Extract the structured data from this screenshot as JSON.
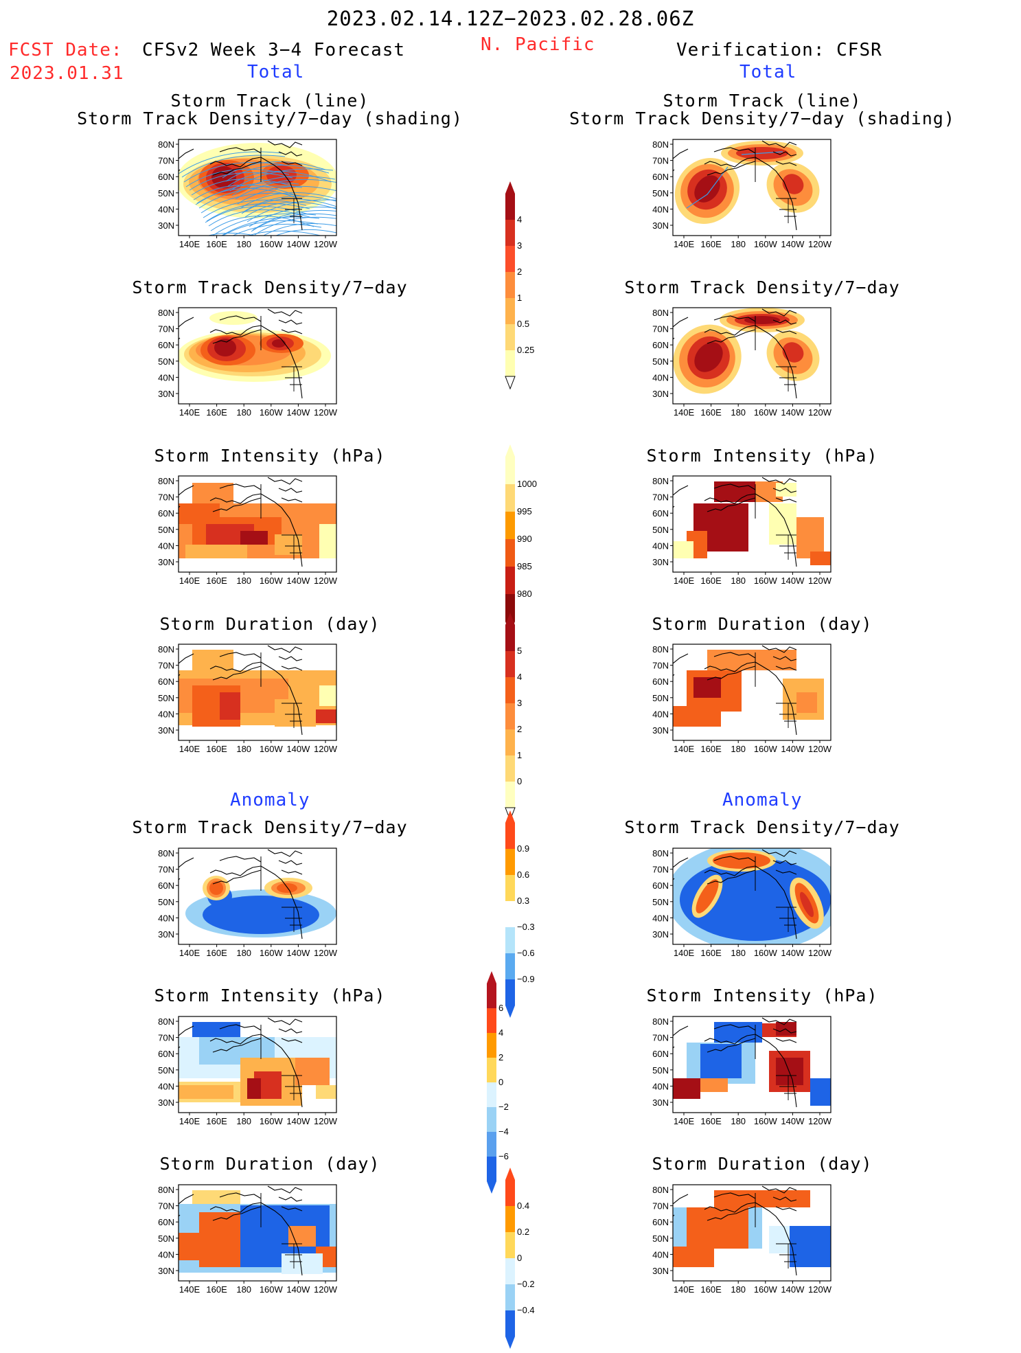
{
  "header": {
    "date_range": "2023.02.14.12Z−2023.02.28.06Z",
    "region": "N. Pacific",
    "fcst_label": "FCST Date:",
    "fcst_date": "2023.01.31",
    "left_title": "CFSv2 Week 3−4 Forecast",
    "right_title": "Verification: CFSR",
    "total_label": "Total",
    "anomaly_label": "Anomaly"
  },
  "axes": {
    "lon_ticks": [
      "140E",
      "160E",
      "180",
      "160W",
      "140W",
      "120W"
    ],
    "lat_ticks": [
      "80N",
      "70N",
      "60N",
      "50N",
      "40N",
      "30N"
    ]
  },
  "panels": {
    "track": {
      "title1": "Storm Track (line)",
      "title2": "Storm Track Density/7−day (shading)"
    },
    "density": {
      "title": "Storm Track Density/7−day"
    },
    "intensity": {
      "title": "Storm Intensity (hPa)"
    },
    "duration": {
      "title": "Storm Duration (day)"
    }
  },
  "colorbars": {
    "density_total": {
      "labels": [
        "4",
        "3",
        "2",
        "1",
        "0.5",
        "0.25"
      ],
      "colors": [
        "#a50f15",
        "#d7301f",
        "#fc4e2a",
        "#fd8d3c",
        "#feb24c",
        "#fed976",
        "#ffffb2"
      ]
    },
    "intensity_total": {
      "labels": [
        "1000",
        "995",
        "990",
        "985",
        "980"
      ],
      "colors": [
        "#ffffc0",
        "#fed976",
        "#fd9a00",
        "#f05a14",
        "#c81e14",
        "#8c0a0a"
      ]
    },
    "duration_total": {
      "labels": [
        "5",
        "4",
        "3",
        "2",
        "1",
        "0"
      ],
      "colors": [
        "#a50f15",
        "#d7301f",
        "#f4601a",
        "#fd8d3c",
        "#feb24c",
        "#fed976",
        "#ffffc0"
      ]
    },
    "density_anom": {
      "labels": [
        "0.9",
        "0.6",
        "0.3",
        "−0.3",
        "−0.6",
        "−0.9"
      ],
      "colors": [
        "#ff4a1a",
        "#ff9a00",
        "#ffd85a",
        "#ffffff",
        "#b4e4fa",
        "#5aaaf0",
        "#1e64e6"
      ]
    },
    "intensity_anom": {
      "labels": [
        "6",
        "4",
        "2",
        "0",
        "−2",
        "−4",
        "−6"
      ],
      "colors": [
        "#b4141e",
        "#ff4a1a",
        "#ff9a00",
        "#ffd85a",
        "#dcf3ff",
        "#9ad2f5",
        "#5aa0ee",
        "#1e64e6"
      ]
    },
    "duration_anom": {
      "labels": [
        "0.4",
        "0.2",
        "0",
        "−0.2",
        "−0.4"
      ],
      "colors": [
        "#ff4a1a",
        "#ff9a00",
        "#ffd85a",
        "#dcf3ff",
        "#9ad2f5",
        "#1e64e6"
      ]
    }
  },
  "map_colors": {
    "dark_red": "#a50f15",
    "red": "#d7301f",
    "orange_red": "#f4601a",
    "orange": "#fd8d3c",
    "light_orange": "#feb24c",
    "yellow": "#fed976",
    "pale_yellow": "#ffffb2",
    "blue": "#1e64e6",
    "light_blue": "#9ad2f5",
    "pale_blue": "#dcf3ff",
    "track_line": "#3c9be6"
  }
}
